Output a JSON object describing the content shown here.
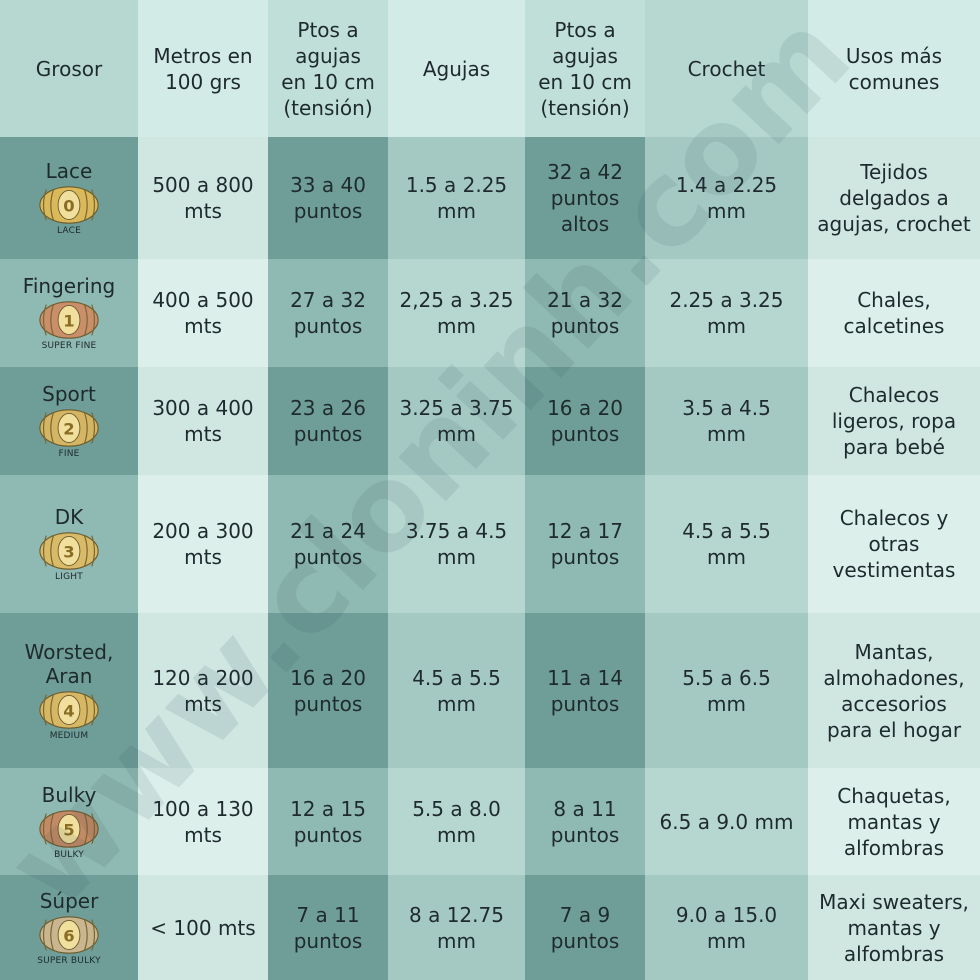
{
  "headers": [
    {
      "lines": [
        "Grosor"
      ]
    },
    {
      "lines": [
        "Metros en",
        "100 grs"
      ]
    },
    {
      "lines": [
        "Ptos a",
        "agujas",
        "en 10 cm",
        "(tensión)"
      ]
    },
    {
      "lines": [
        "Agujas"
      ]
    },
    {
      "lines": [
        "Ptos a",
        "agujas",
        "en 10 cm",
        "(tensión)"
      ]
    },
    {
      "lines": [
        "Crochet"
      ]
    },
    {
      "lines": [
        "Usos más",
        "comunes"
      ]
    }
  ],
  "rows": [
    {
      "name": [
        "Lace"
      ],
      "badge_num": "0",
      "badge_label": "LACE",
      "badge_color": "#d9b95a",
      "cells": [
        [
          "500 a 800",
          "mts"
        ],
        [
          "33 a 40",
          "puntos"
        ],
        [
          "1.5 a 2.25",
          "mm"
        ],
        [
          "32 a 42",
          "puntos",
          "altos"
        ],
        [
          "1.4 a 2.25",
          "mm"
        ],
        [
          "Tejidos",
          "delgados a",
          "agujas, crochet"
        ]
      ]
    },
    {
      "name": [
        "Fingering"
      ],
      "badge_num": "1",
      "badge_label": "SUPER FINE",
      "badge_color": "#c98f6a",
      "cells": [
        [
          "400 a 500",
          "mts"
        ],
        [
          "27 a 32",
          "puntos"
        ],
        [
          "2,25 a 3.25",
          "mm"
        ],
        [
          "21 a 32",
          "puntos"
        ],
        [
          "2.25 a 3.25",
          "mm"
        ],
        [
          "Chales,",
          "calcetines"
        ]
      ]
    },
    {
      "name": [
        "Sport"
      ],
      "badge_num": "2",
      "badge_label": "FINE",
      "badge_color": "#d4b563",
      "cells": [
        [
          "300 a 400",
          "mts"
        ],
        [
          "23 a 26",
          "puntos"
        ],
        [
          "3.25 a 3.75",
          "mm"
        ],
        [
          "16 a 20",
          "puntos"
        ],
        [
          "3.5 a 4.5",
          "mm"
        ],
        [
          "Chalecos",
          "ligeros, ropa",
          "para bebé"
        ]
      ]
    },
    {
      "name": [
        "DK"
      ],
      "badge_num": "3",
      "badge_label": "LIGHT",
      "badge_color": "#d8ba68",
      "cells": [
        [
          "200 a 300",
          "mts"
        ],
        [
          "21 a 24",
          "puntos"
        ],
        [
          "3.75 a 4.5",
          "mm"
        ],
        [
          "12 a 17",
          "puntos"
        ],
        [
          "4.5 a 5.5",
          "mm"
        ],
        [
          "Chalecos y",
          "otras",
          "vestimentas"
        ]
      ]
    },
    {
      "name": [
        "Worsted,",
        "Aran"
      ],
      "badge_num": "4",
      "badge_label": "MEDIUM",
      "badge_color": "#d6b764",
      "cells": [
        [
          "120 a 200",
          "mts"
        ],
        [
          "16 a 20",
          "puntos"
        ],
        [
          "4.5 a 5.5",
          "mm"
        ],
        [
          "11 a 14",
          "puntos"
        ],
        [
          "5.5 a 6.5",
          "mm"
        ],
        [
          "Mantas,",
          "almohadones,",
          "accesorios",
          "para el hogar"
        ]
      ]
    },
    {
      "name": [
        "Bulky"
      ],
      "badge_num": "5",
      "badge_label": "BULKY",
      "badge_color": "#c28a66",
      "cells": [
        [
          "100 a 130",
          "mts"
        ],
        [
          "12 a 15",
          "puntos"
        ],
        [
          "5.5 a 8.0",
          "mm"
        ],
        [
          "8 a 11",
          "puntos"
        ],
        [
          "6.5 a 9.0 mm"
        ],
        [
          "Chaquetas,",
          "mantas y",
          "alfombras"
        ]
      ]
    },
    {
      "name": [
        "Súper"
      ],
      "badge_num": "6",
      "badge_label": "SUPER BULKY",
      "badge_color": "#c9b590",
      "cells": [
        [
          "< 100 mts"
        ],
        [
          "7 a 11",
          "puntos"
        ],
        [
          "8 a 12.75",
          "mm"
        ],
        [
          "7 a 9",
          "puntos"
        ],
        [
          "9.0 a 15.0",
          "mm"
        ],
        [
          "Maxi sweaters,",
          "mantas y",
          "alfombras"
        ]
      ]
    }
  ],
  "watermark": "www.cloninh.com",
  "colors": {
    "header": [
      "#b6d8d1",
      "#d3ebe6",
      "#bfdfd8",
      "#d3ebe6",
      "#bfdfd8",
      "#b6d8d1",
      "#d3ebe6"
    ],
    "row_odd": [
      "#6f9e99",
      "#cfe6e1",
      "#6f9e99",
      "#a4c9c3",
      "#6f9e99",
      "#a4c9c3",
      "#cfe6e1"
    ],
    "row_even": [
      "#8fb9b3",
      "#dcefeb",
      "#8fb9b3",
      "#b6d6d0",
      "#8fb9b3",
      "#b6d6d0",
      "#dcefeb"
    ]
  }
}
